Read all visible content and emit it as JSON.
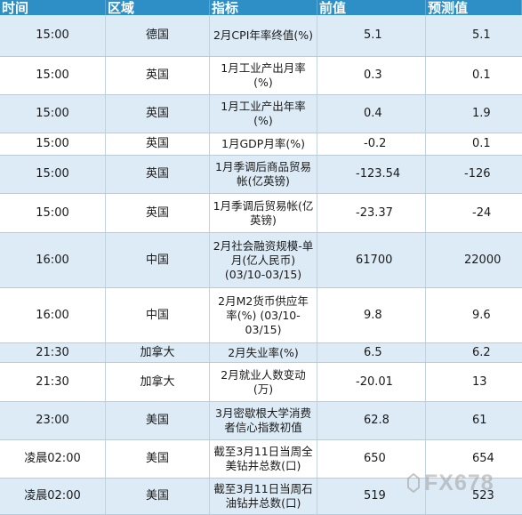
{
  "table": {
    "headers": [
      "时间",
      "区域",
      "指标",
      "前值",
      "预测值"
    ],
    "rows": [
      {
        "time": "15:00",
        "region": "德国",
        "indicator": "2月CPI年率终值(%)",
        "previous": "5.1",
        "forecast": "5.1"
      },
      {
        "time": "15:00",
        "region": "英国",
        "indicator": "1月工业产出月率(%)",
        "previous": "0.3",
        "forecast": "0.1"
      },
      {
        "time": "15:00",
        "region": "英国",
        "indicator": "1月工业产出年率(%)",
        "previous": "0.4",
        "forecast": "1.9"
      },
      {
        "time": "15:00",
        "region": "英国",
        "indicator": "1月GDP月率(%)",
        "previous": "-0.2",
        "forecast": "0.1"
      },
      {
        "time": "15:00",
        "region": "英国",
        "indicator": "1月季调后商品贸易帐(亿英镑)",
        "previous": "-123.54",
        "forecast": "-126"
      },
      {
        "time": "15:00",
        "region": "英国",
        "indicator": "1月季调后贸易帐(亿英镑)",
        "previous": "-23.37",
        "forecast": "-24"
      },
      {
        "time": "16:00",
        "region": "中国",
        "indicator": "2月社会融资规模-单月(亿人民币) (03/10-03/15)",
        "previous": "61700",
        "forecast": "22000"
      },
      {
        "time": "16:00",
        "region": "中国",
        "indicator": "2月M2货币供应年率(%) (03/10-03/15)",
        "previous": "9.8",
        "forecast": "9.6"
      },
      {
        "time": "21:30",
        "region": "加拿大",
        "indicator": "2月失业率(%)",
        "previous": "6.5",
        "forecast": "6.2"
      },
      {
        "time": "21:30",
        "region": "加拿大",
        "indicator": "2月就业人数变动(万)",
        "previous": "-20.01",
        "forecast": "13"
      },
      {
        "time": "23:00",
        "region": "美国",
        "indicator": "3月密歇根大学消费者信心指数初值",
        "previous": "62.8",
        "forecast": "61"
      },
      {
        "time": "凌晨02:00",
        "region": "美国",
        "indicator": "截至3月11日当周全美钻井总数(口)",
        "previous": "650",
        "forecast": "654"
      },
      {
        "time": "凌晨02:00",
        "region": "美国",
        "indicator": "截至3月11日当周石油钻井总数(口)",
        "previous": "519",
        "forecast": "523"
      }
    ]
  },
  "watermark": "FX678"
}
